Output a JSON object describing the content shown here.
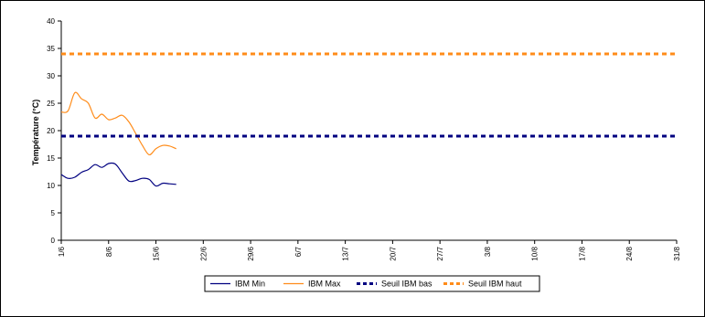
{
  "chart_data": {
    "type": "line",
    "ylabel": "Température (°C)",
    "xlabel": "",
    "ylim": [
      0,
      40
    ],
    "yticks": [
      0,
      5,
      10,
      15,
      20,
      25,
      30,
      35,
      40
    ],
    "x_ticks": [
      "1/6",
      "8/6",
      "15/6",
      "22/6",
      "29/6",
      "6/7",
      "13/7",
      "20/7",
      "27/7",
      "3/8",
      "10/8",
      "17/8",
      "24/8",
      "31/8"
    ],
    "grid": false,
    "legend_position": "bottom",
    "series": [
      {
        "name": "IBM Min",
        "color": "#000080",
        "style": "solid",
        "x": [
          "1/6",
          "2/6",
          "3/6",
          "4/6",
          "5/6",
          "6/6",
          "7/6",
          "8/6",
          "9/6",
          "10/6",
          "11/6",
          "12/6",
          "13/6",
          "14/6",
          "15/6",
          "16/6",
          "17/6",
          "18/6"
        ],
        "values": [
          12.0,
          11.3,
          11.5,
          12.4,
          12.9,
          13.8,
          13.3,
          14.0,
          13.9,
          12.3,
          10.8,
          10.9,
          11.3,
          11.1,
          9.9,
          10.4,
          10.3,
          10.2
        ]
      },
      {
        "name": "IBM Max",
        "color": "#FF8C1A",
        "style": "solid",
        "x": [
          "1/6",
          "2/6",
          "3/6",
          "4/6",
          "5/6",
          "6/6",
          "7/6",
          "8/6",
          "9/6",
          "10/6",
          "11/6",
          "12/6",
          "13/6",
          "14/6",
          "15/6",
          "16/6",
          "17/6",
          "18/6"
        ],
        "values": [
          23.4,
          23.6,
          26.9,
          25.8,
          25.0,
          22.3,
          23.0,
          22.0,
          22.3,
          22.8,
          21.6,
          19.5,
          17.3,
          15.6,
          16.7,
          17.3,
          17.2,
          16.7
        ]
      },
      {
        "name": "Seuil IBM bas",
        "color": "#000080",
        "style": "dashed",
        "x": [
          "1/6",
          "31/8"
        ],
        "values": [
          19,
          19
        ]
      },
      {
        "name": "Seuil IBM haut",
        "color": "#FF8C1A",
        "style": "dashed",
        "x": [
          "1/6",
          "31/8"
        ],
        "values": [
          34,
          34
        ]
      }
    ]
  }
}
